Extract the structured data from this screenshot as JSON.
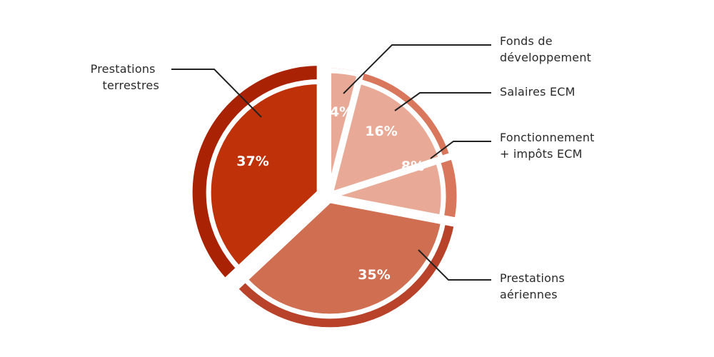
{
  "chart_data": {
    "type": "pie",
    "title": "",
    "legend": "none",
    "slices": [
      {
        "label": "Fonds de développement",
        "label_lines": [
          "Fonds de",
          "développement"
        ],
        "value": 4,
        "value_label": "4%",
        "color": "#e8aa96",
        "rim_color": "#d9775c"
      },
      {
        "label": "Salaires ECM",
        "label_lines": [
          "Salaires ECM"
        ],
        "value": 16,
        "value_label": "16%",
        "color": "#e8aa96",
        "rim_color": "#d9775c"
      },
      {
        "label": "Fonctionnement + impôts ECM",
        "label_lines": [
          "Fonctionnement",
          "+ impôts ECM"
        ],
        "value": 8,
        "value_label": "8%",
        "color": "#e8aa96",
        "rim_color": "#d9775c"
      },
      {
        "label": "Prestations aériennes",
        "label_lines": [
          "Prestations",
          "aériennes"
        ],
        "value": 35,
        "value_label": "35%",
        "color": "#cf6e50",
        "rim_color": "#b8432a"
      },
      {
        "label": "Prestations terrestres",
        "label_lines": [
          "Prestations",
          "terrestres"
        ],
        "value": 37,
        "value_label": "37%",
        "color": "#bf3108",
        "rim_color": "#a82203"
      }
    ]
  }
}
